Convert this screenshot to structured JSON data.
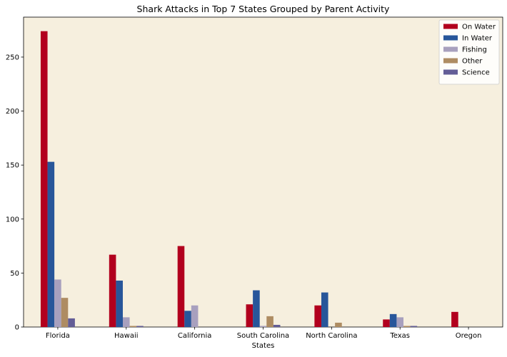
{
  "chart_data": {
    "type": "bar",
    "title": "Shark Attacks in Top 7 States Grouped by Parent Activity",
    "xlabel": "States",
    "ylabel": "",
    "ylim": [
      0,
      287
    ],
    "yticks": [
      0,
      50,
      100,
      150,
      200,
      250
    ],
    "categories": [
      "Florida",
      "Hawaii",
      "California",
      "South Carolina",
      "North Carolina",
      "Texas",
      "Oregon"
    ],
    "series": [
      {
        "name": "On Water",
        "color": "#b2001e",
        "values": [
          274,
          67,
          75,
          21,
          20,
          7,
          14
        ]
      },
      {
        "name": "In Water",
        "color": "#28569a",
        "values": [
          153,
          43,
          15,
          34,
          32,
          12,
          0
        ]
      },
      {
        "name": "Fishing",
        "color": "#a8a0be",
        "values": [
          44,
          9,
          20,
          1,
          0,
          9,
          0
        ]
      },
      {
        "name": "Other",
        "color": "#ae8c62",
        "values": [
          27,
          1,
          0,
          10,
          4,
          1,
          0
        ]
      },
      {
        "name": "Science",
        "color": "#635d96",
        "values": [
          8,
          1,
          0,
          2,
          0,
          1,
          0
        ]
      }
    ],
    "legend_position": "top-right",
    "plot_background": "#f6efde",
    "grid": false
  }
}
